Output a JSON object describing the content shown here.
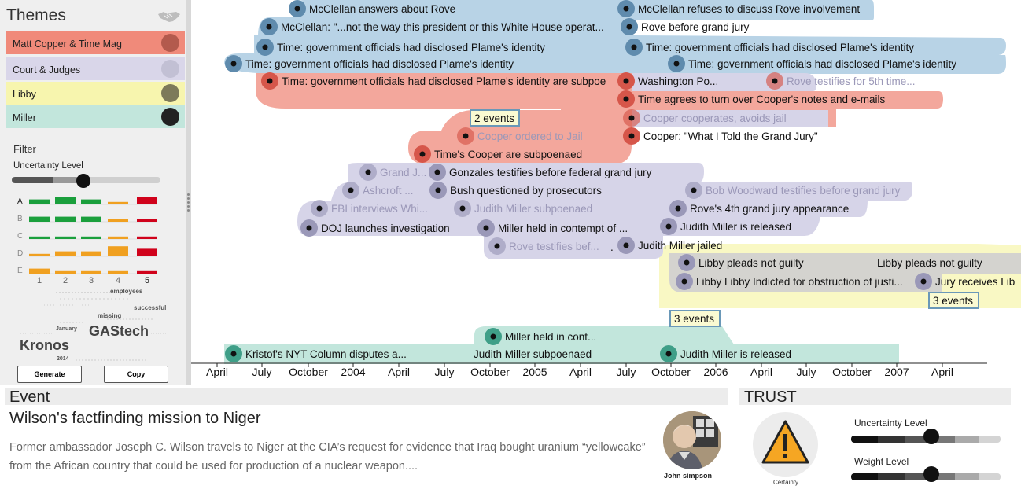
{
  "sidebar": {
    "title": "Themes",
    "themes": [
      {
        "label": "Matt Copper & Time Mag",
        "bg": "#f08a7a",
        "swatch": "#b35a4d"
      },
      {
        "label": "Court & Judges",
        "bg": "#d9d6e9",
        "swatch": "#c2c0d4"
      },
      {
        "label": "Libby",
        "bg": "#f7f5ae",
        "swatch": "#7d7a5a"
      },
      {
        "label": "Miller",
        "bg": "#c2e6dc",
        "swatch": "#222222"
      }
    ],
    "filter_label": "Filter",
    "uncertainty_label": "Uncertainty Level",
    "histogram": {
      "rows": [
        "A",
        "B",
        "C",
        "D",
        "E"
      ],
      "columns": [
        "1",
        "2",
        "3",
        "4",
        "5"
      ],
      "bars": [
        [
          2,
          3,
          2,
          1,
          3
        ],
        [
          2,
          2,
          2,
          1,
          1
        ],
        [
          1,
          1,
          1,
          1,
          1
        ],
        [
          1,
          2,
          2,
          4,
          3
        ],
        [
          2,
          1,
          1,
          1,
          1
        ]
      ]
    },
    "word_cloud": [
      "employees",
      "successful",
      "missing",
      "January",
      "GAStech",
      "Kronos",
      "2014"
    ],
    "generate_label": "Generate",
    "copy_label": "Copy"
  },
  "timeline": {
    "axis_ticks": [
      "April",
      "July",
      "October",
      "2004",
      "April",
      "July",
      "October",
      "2005",
      "April",
      "July",
      "October",
      "2006",
      "April",
      "July",
      "October",
      "2007",
      "April"
    ],
    "events": [
      {
        "label": "McClellan answers about Rove",
        "theme": "blue"
      },
      {
        "label": "McClellan refuses to discuss Rove involvement",
        "theme": "blue"
      },
      {
        "label": "McClellan: \"...not the way this president or this White House operat...",
        "theme": "blue"
      },
      {
        "label": "Rove before grand jury",
        "theme": "blue"
      },
      {
        "label": "Time: government officials had disclosed Plame's identity",
        "theme": "blue"
      },
      {
        "label": "Time: government officials had disclosed Plame's identity",
        "theme": "blue"
      },
      {
        "label": "Time: government officials had disclosed Plame's identity",
        "theme": "blue"
      },
      {
        "label": "Time: government officials had disclosed Plame's identity",
        "theme": "blue"
      },
      {
        "label": "Time: government officials had disclosed Plame's identity are subpoe",
        "theme": "red"
      },
      {
        "label": "Washington Po...",
        "theme": "red"
      },
      {
        "label": "Rove testifies for 5th time...",
        "theme": "red"
      },
      {
        "label": "Time agrees to turn over Cooper's notes and e-mails",
        "theme": "red"
      },
      {
        "label": "Cooper cooperates, avoids jail",
        "theme": "red"
      },
      {
        "label": "Cooper ordered to Jail",
        "theme": "red"
      },
      {
        "label": "Cooper: \"What I Told the Grand Jury\"",
        "theme": "red"
      },
      {
        "label": "Time's Cooper are subpoenaed",
        "theme": "red"
      },
      {
        "label": "Grand J...",
        "theme": "purple"
      },
      {
        "label": "Gonzales testifies before federal grand jury",
        "theme": "purple"
      },
      {
        "label": "Ashcroft ...",
        "theme": "purple"
      },
      {
        "label": "Bush questioned by prosecutors",
        "theme": "purple"
      },
      {
        "label": "Bob Woodward testifies before grand jury",
        "theme": "purple"
      },
      {
        "label": "FBI interviews Whi...",
        "theme": "purple"
      },
      {
        "label": "Judith Miller subpoenaed",
        "theme": "purple"
      },
      {
        "label": "Rove's 4th grand jury appearance",
        "theme": "purple"
      },
      {
        "label": "DOJ launches investigation",
        "theme": "purple"
      },
      {
        "label": "Miller held in contempt of ...",
        "theme": "purple"
      },
      {
        "label": "Judith Miller is released",
        "theme": "purple"
      },
      {
        "label": "Rove testifies bef...",
        "theme": "purple"
      },
      {
        "label": "Judith Miller jailed",
        "theme": "purple"
      },
      {
        "label": "Libby pleads not guilty",
        "theme": "grey"
      },
      {
        "label": "Libby pleads not guilty",
        "theme": "grey"
      },
      {
        "label": "Libby Libby Indicted for obstruction of justi...",
        "theme": "grey"
      },
      {
        "label": "Jury receives Lib",
        "theme": "grey"
      },
      {
        "label": "Miller held in cont...",
        "theme": "green"
      },
      {
        "label": "Kristof's NYT Column disputes a...",
        "theme": "green"
      },
      {
        "label": "Judith Miller subpoenaed",
        "theme": "green"
      },
      {
        "label": "Judith Miller is released",
        "theme": "green"
      }
    ],
    "clusters": [
      "2 events",
      "3 events",
      "3 events"
    ]
  },
  "event_panel": {
    "header": "Event",
    "title": "Wilson's factfinding mission to Niger",
    "description": "Former ambassador Joseph C. Wilson travels to Niger at the CIA’s request for evidence that Iraq bought uranium “yellowcake” from the African country that could be used for production of a nuclear weapon....",
    "source_name": "John simpson"
  },
  "trust_panel": {
    "header": "TRUST",
    "certainty_label": "Certainty",
    "uncertainty_label": "Uncertainty Level",
    "weight_label": "Weight Level"
  },
  "colors": {
    "blue_band": "#b8d3e6",
    "red_band": "#f3a79c",
    "purple_band": "#d6d4e8",
    "grey_band": "#d4d3cf",
    "yellow_band": "#f9f8c4",
    "green_band": "#c2e6dc",
    "warning": "#f5a623"
  }
}
